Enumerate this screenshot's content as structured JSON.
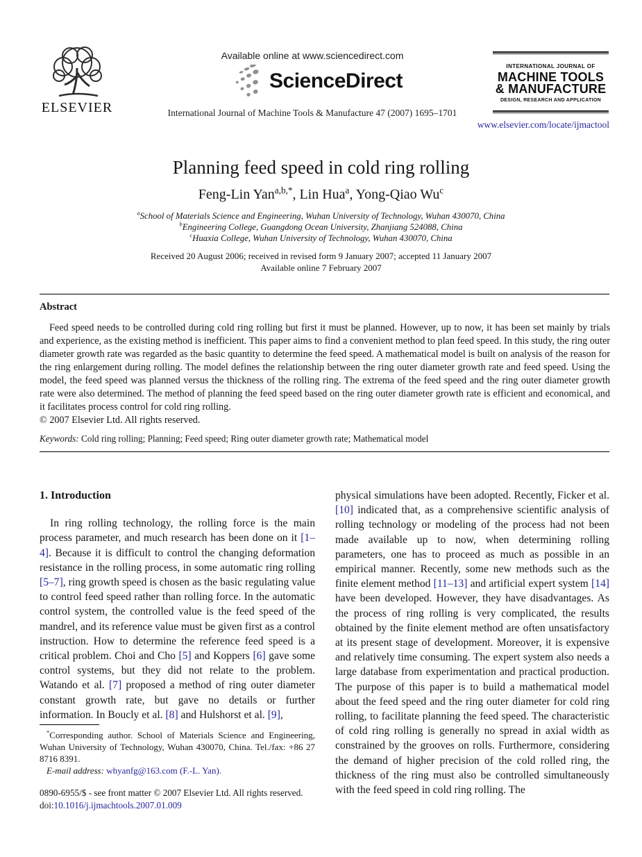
{
  "header": {
    "elsevier_logo_text": "ELSEVIER",
    "available_online": "Available online at www.sciencedirect.com",
    "sciencedirect_logo_text": "ScienceDirect",
    "journal_citation": "International Journal of Machine Tools & Manufacture 47 (2007) 1695–1701",
    "journal_box": {
      "line1": "INTERNATIONAL JOURNAL OF",
      "line2": "MACHINE TOOLS",
      "line3": "& MANUFACTURE",
      "line4": "DESIGN, RESEARCH AND APPLICATION"
    },
    "journal_url": "www.elsevier.com/locate/ijmactool"
  },
  "article": {
    "title": "Planning feed speed in cold ring rolling",
    "authors_rich": [
      {
        "t": "Feng-Lin Yan"
      },
      {
        "t": "a,b,*",
        "c": "sup"
      },
      {
        "t": ", Lin Hua"
      },
      {
        "t": "a",
        "c": "sup"
      },
      {
        "t": ", Yong-Qiao Wu"
      },
      {
        "t": "c",
        "c": "sup"
      }
    ],
    "affiliation_a_rich": [
      {
        "t": "a",
        "c": "sup"
      },
      {
        "t": "School of Materials Science and Engineering, Wuhan University of Technology, Wuhan 430070, China"
      }
    ],
    "affiliation_b_rich": [
      {
        "t": "b",
        "c": "sup"
      },
      {
        "t": "Engineering College, Guangdong Ocean University, Zhanjiang 524088, China"
      }
    ],
    "affiliation_c_rich": [
      {
        "t": "c",
        "c": "sup"
      },
      {
        "t": "Huaxia College, Wuhan University of Technology, Wuhan 430070, China"
      }
    ],
    "received_line": "Received 20 August 2006; received in revised form 9 January 2007; accepted 11 January 2007",
    "available_online_date": "Available online 7 February 2007"
  },
  "abstract": {
    "heading": "Abstract",
    "paragraph": "Feed speed needs to be controlled during cold ring rolling but first it must be planned. However, up to now, it has been set mainly by trials and experience, as the existing method is inefficient. This paper aims to find a convenient method to plan feed speed. In this study, the ring outer diameter growth rate was regarded as the basic quantity to determine the feed speed. A mathematical model is built on analysis of the reason for the ring enlargement during rolling. The model defines the relationship between the ring outer diameter growth rate and feed speed. Using the model, the feed speed was planned versus the thickness of the rolling ring. The extrema of the feed speed and the ring outer diameter growth rate were also determined. The method of planning the feed speed based on the ring outer diameter growth rate is efficient and economical, and it facilitates process control for cold ring rolling.",
    "copyright": "© 2007 Elsevier Ltd. All rights reserved.",
    "keywords_rich": [
      {
        "t": "Keywords: ",
        "c": "it"
      },
      {
        "t": "Cold ring rolling; Planning; Feed speed; Ring outer diameter growth rate; Mathematical model"
      }
    ]
  },
  "body": {
    "section1_heading": "1. Introduction",
    "col_left_rich": [
      {
        "t": "In ring rolling technology, the rolling force is the main process parameter, and much research has been done on it "
      },
      {
        "t": "[1–4]",
        "c": "lnk"
      },
      {
        "t": ". Because it is difficult to control the changing deformation resistance in the rolling process, in some automatic ring rolling "
      },
      {
        "t": "[5–7]",
        "c": "lnk"
      },
      {
        "t": ", ring growth speed is chosen as the basic regulating value to control feed speed rather than rolling force. In the automatic control system, the controlled value is the feed speed of the mandrel, and its reference value must be given first as a control instruction. How to determine the reference feed speed is a critical problem. Choi and Cho "
      },
      {
        "t": "[5]",
        "c": "lnk"
      },
      {
        "t": " and Koppers "
      },
      {
        "t": "[6]",
        "c": "lnk"
      },
      {
        "t": " gave some control systems, but they did not relate to the problem. Watando et al. "
      },
      {
        "t": "[7]",
        "c": "lnk"
      },
      {
        "t": " proposed a method of ring outer diameter constant growth rate, but gave no details or further information. In Boucly et al. "
      },
      {
        "t": "[8]",
        "c": "lnk"
      },
      {
        "t": " and Hulshorst et al. "
      },
      {
        "t": "[9]",
        "c": "lnk"
      },
      {
        "t": ","
      }
    ],
    "col_right_rich": [
      {
        "t": "physical simulations have been adopted. Recently, Ficker et al. "
      },
      {
        "t": "[10]",
        "c": "lnk"
      },
      {
        "t": " indicated that, as a comprehensive scientific analysis of rolling technology or modeling of the process had not been made available up to now, when determining rolling parameters, one has to proceed as much as possible in an empirical manner. Recently, some new methods such as the finite element method "
      },
      {
        "t": "[11–13]",
        "c": "lnk"
      },
      {
        "t": " and artificial expert system "
      },
      {
        "t": "[14]",
        "c": "lnk"
      },
      {
        "t": " have been developed. However, they have disadvantages. As the process of ring rolling is very complicated, the results obtained by the finite element method are often unsatisfactory at its present stage of development. Moreover, it is expensive and relatively time consuming. The expert system also needs a large database from experimentation and practical production. The purpose of this paper is to build a mathematical model about the feed speed and the ring outer diameter for cold ring rolling, to facilitate planning the feed speed. The characteristic of cold ring rolling is generally no spread in axial width as constrained by the grooves on rolls. Furthermore, considering the demand of higher precision of the cold rolled ring, the thickness of the ring must also be controlled simultaneously with the feed speed in cold ring rolling. The"
      }
    ]
  },
  "footnote": {
    "corresponding_rich": [
      {
        "t": "*",
        "c": "sup"
      },
      {
        "t": "Corresponding author. School of Materials Science and Engineering, Wuhan University of Technology, Wuhan 430070, China. Tel./fax: +86 27 8716 8391."
      }
    ],
    "email_rich": [
      {
        "t": "E-mail address: ",
        "c": "it"
      },
      {
        "t": "whyanfg@163.com (F.-L. Yan).",
        "c": "lnk"
      }
    ]
  },
  "footer": {
    "issn_line": "0890-6955/$ - see front matter © 2007 Elsevier Ltd. All rights reserved.",
    "doi_rich": [
      {
        "t": "doi:"
      },
      {
        "t": "10.1016/j.ijmachtools.2007.01.009",
        "c": "lnk"
      }
    ]
  }
}
